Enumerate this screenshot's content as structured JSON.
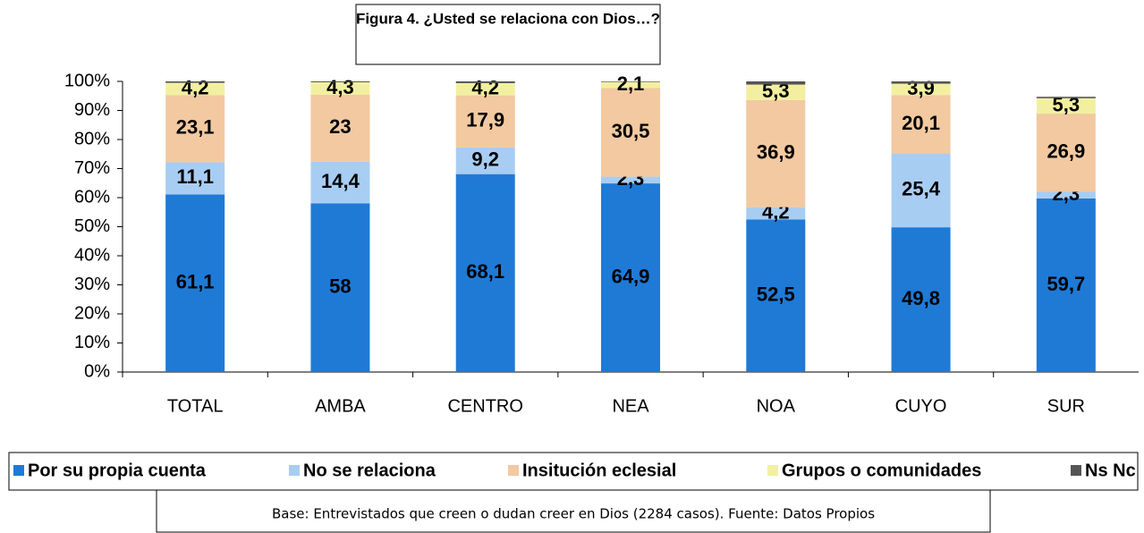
{
  "chart_data": {
    "type": "bar",
    "stacked": true,
    "title": "Figura 4.  ¿Usted se relaciona con Dios…?",
    "footnote": "Base: Entrevistados que creen o dudan creer en Dios (2284 casos).    Fuente: Datos Propios",
    "categories": [
      "TOTAL",
      "AMBA",
      "CENTRO",
      "NEA",
      "NOA",
      "CUYO",
      "SUR"
    ],
    "series": [
      {
        "name": "Por su propia cuenta",
        "color": "#1f7ad6",
        "values": [
          61.1,
          58,
          68.1,
          64.9,
          52.5,
          49.8,
          59.7
        ],
        "value_labels": [
          "61,1",
          "58",
          "68,1",
          "64,9",
          "52,5",
          "49,8",
          "59,7"
        ]
      },
      {
        "name": "No se relaciona",
        "color": "#a8cdf2",
        "values": [
          11.1,
          14.4,
          9.2,
          2.3,
          4.2,
          25.4,
          2.3
        ],
        "value_labels": [
          "11,1",
          "14,4",
          "9,2",
          "2,3",
          "4,2",
          "25,4",
          "2,3"
        ]
      },
      {
        "name": "Insitución eclesial",
        "color": "#f2c9a0",
        "values": [
          23.1,
          23,
          17.9,
          30.5,
          36.9,
          20.1,
          26.9
        ],
        "value_labels": [
          "23,1",
          "23",
          "17,9",
          "30,5",
          "36,9",
          "20,1",
          "26,9"
        ]
      },
      {
        "name": "Grupos o comunidades",
        "color": "#f2f0a0",
        "values": [
          4.2,
          4.3,
          4.2,
          2.1,
          5.3,
          3.9,
          5.3
        ],
        "value_labels": [
          "4,2",
          "4,3",
          "4,2",
          "2,1",
          "5,3",
          "3,9",
          "5,3"
        ]
      },
      {
        "name": "Ns Nc",
        "color": "#555555",
        "values": [
          0.5,
          0.3,
          0.6,
          0.2,
          1.1,
          0.8,
          0.5
        ]
      }
    ],
    "ylim": [
      0,
      100
    ],
    "yticks": [
      {
        "value": 0,
        "label": "0%"
      },
      {
        "value": 10,
        "label": "10%"
      },
      {
        "value": 20,
        "label": "20%"
      },
      {
        "value": 30,
        "label": "30%"
      },
      {
        "value": 40,
        "label": "40%"
      },
      {
        "value": 50,
        "label": "50%"
      },
      {
        "value": 60,
        "label": "60%"
      },
      {
        "value": 70,
        "label": "70%"
      },
      {
        "value": 80,
        "label": "80%"
      },
      {
        "value": 90,
        "label": "90%"
      },
      {
        "value": 100,
        "label": "100%"
      }
    ],
    "legend": "bottom"
  }
}
